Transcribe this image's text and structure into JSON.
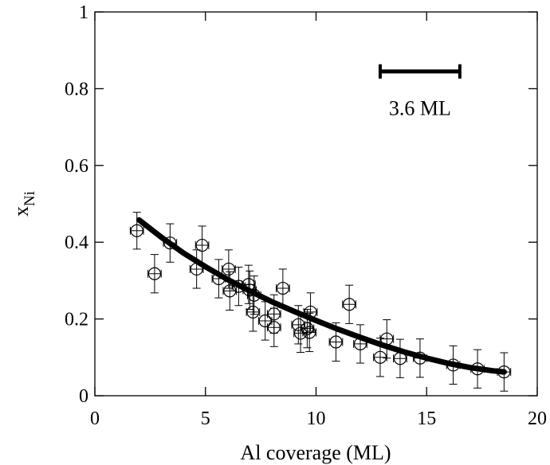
{
  "chart_data": {
    "type": "scatter",
    "xlabel": "Al coverage (ML)",
    "ylabel_main": "x",
    "ylabel_sub": "Ni",
    "xlim": [
      0,
      20
    ],
    "ylim": [
      0,
      1
    ],
    "x_ticks": [
      0,
      5,
      10,
      15,
      20
    ],
    "y_ticks": [
      0,
      0.2,
      0.4,
      0.6,
      0.8,
      1
    ],
    "x_tick_labels": [
      "0",
      "5",
      "10",
      "15",
      "20"
    ],
    "y_tick_labels": [
      "0",
      "0.2",
      "0.4",
      "0.6",
      "0.8",
      "1"
    ],
    "grid": false,
    "annotation": {
      "text": "3.6 ML",
      "scale_bar": {
        "x_start": 12.9,
        "x_end": 16.5,
        "y": 0.845
      }
    },
    "points": [
      {
        "x": 1.9,
        "y": 0.43,
        "xerr": 0.3,
        "yerr": 0.048
      },
      {
        "x": 2.7,
        "y": 0.318,
        "xerr": 0.3,
        "yerr": 0.05
      },
      {
        "x": 3.4,
        "y": 0.398,
        "xerr": 0.3,
        "yerr": 0.05
      },
      {
        "x": 4.6,
        "y": 0.33,
        "xerr": 0.3,
        "yerr": 0.05
      },
      {
        "x": 4.85,
        "y": 0.392,
        "xerr": 0.3,
        "yerr": 0.05
      },
      {
        "x": 5.6,
        "y": 0.305,
        "xerr": 0.3,
        "yerr": 0.05
      },
      {
        "x": 6.05,
        "y": 0.33,
        "xerr": 0.3,
        "yerr": 0.05
      },
      {
        "x": 6.1,
        "y": 0.273,
        "xerr": 0.3,
        "yerr": 0.05
      },
      {
        "x": 6.5,
        "y": 0.285,
        "xerr": 0.3,
        "yerr": 0.05
      },
      {
        "x": 6.95,
        "y": 0.29,
        "xerr": 0.3,
        "yerr": 0.05
      },
      {
        "x": 7.0,
        "y": 0.275,
        "xerr": 0.3,
        "yerr": 0.05
      },
      {
        "x": 7.15,
        "y": 0.218,
        "xerr": 0.3,
        "yerr": 0.05
      },
      {
        "x": 7.2,
        "y": 0.262,
        "xerr": 0.3,
        "yerr": 0.05
      },
      {
        "x": 7.7,
        "y": 0.195,
        "xerr": 0.3,
        "yerr": 0.05
      },
      {
        "x": 8.1,
        "y": 0.213,
        "xerr": 0.3,
        "yerr": 0.05
      },
      {
        "x": 8.1,
        "y": 0.178,
        "xerr": 0.3,
        "yerr": 0.05
      },
      {
        "x": 8.5,
        "y": 0.28,
        "xerr": 0.3,
        "yerr": 0.05
      },
      {
        "x": 9.2,
        "y": 0.185,
        "xerr": 0.3,
        "yerr": 0.05
      },
      {
        "x": 9.3,
        "y": 0.163,
        "xerr": 0.3,
        "yerr": 0.05
      },
      {
        "x": 9.6,
        "y": 0.175,
        "xerr": 0.3,
        "yerr": 0.05
      },
      {
        "x": 9.7,
        "y": 0.165,
        "xerr": 0.3,
        "yerr": 0.05
      },
      {
        "x": 9.75,
        "y": 0.218,
        "xerr": 0.3,
        "yerr": 0.05
      },
      {
        "x": 10.9,
        "y": 0.14,
        "xerr": 0.3,
        "yerr": 0.05
      },
      {
        "x": 11.5,
        "y": 0.238,
        "xerr": 0.3,
        "yerr": 0.05
      },
      {
        "x": 12.0,
        "y": 0.135,
        "xerr": 0.3,
        "yerr": 0.05
      },
      {
        "x": 12.9,
        "y": 0.1,
        "xerr": 0.3,
        "yerr": 0.05
      },
      {
        "x": 13.2,
        "y": 0.148,
        "xerr": 0.3,
        "yerr": 0.05
      },
      {
        "x": 13.8,
        "y": 0.097,
        "xerr": 0.3,
        "yerr": 0.05
      },
      {
        "x": 14.7,
        "y": 0.098,
        "xerr": 0.3,
        "yerr": 0.05
      },
      {
        "x": 16.2,
        "y": 0.08,
        "xerr": 0.3,
        "yerr": 0.05
      },
      {
        "x": 17.3,
        "y": 0.07,
        "xerr": 0.3,
        "yerr": 0.05
      },
      {
        "x": 18.5,
        "y": 0.062,
        "xerr": 0.3,
        "yerr": 0.05
      }
    ],
    "fit_curve": [
      {
        "x": 2.0,
        "y": 0.458
      },
      {
        "x": 3.0,
        "y": 0.413
      },
      {
        "x": 4.0,
        "y": 0.372
      },
      {
        "x": 5.0,
        "y": 0.336
      },
      {
        "x": 6.0,
        "y": 0.303
      },
      {
        "x": 7.0,
        "y": 0.273
      },
      {
        "x": 8.0,
        "y": 0.245
      },
      {
        "x": 9.0,
        "y": 0.22
      },
      {
        "x": 10.0,
        "y": 0.196
      },
      {
        "x": 11.0,
        "y": 0.173
      },
      {
        "x": 12.0,
        "y": 0.152
      },
      {
        "x": 13.0,
        "y": 0.132
      },
      {
        "x": 14.0,
        "y": 0.114
      },
      {
        "x": 15.0,
        "y": 0.098
      },
      {
        "x": 16.0,
        "y": 0.084
      },
      {
        "x": 17.0,
        "y": 0.073
      },
      {
        "x": 18.0,
        "y": 0.065
      },
      {
        "x": 18.5,
        "y": 0.062
      }
    ]
  }
}
